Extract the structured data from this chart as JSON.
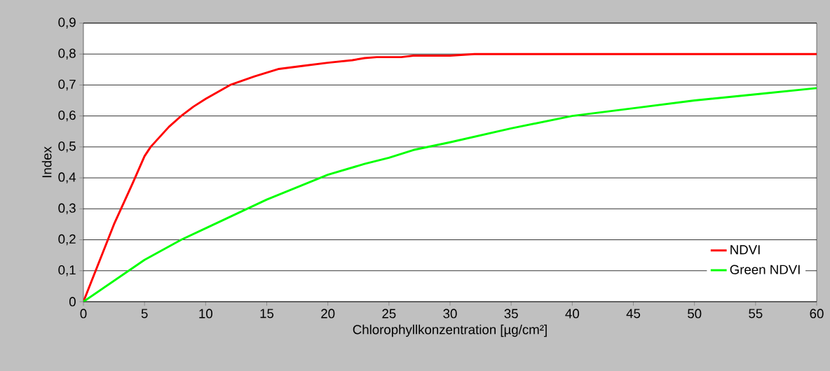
{
  "chart_data": {
    "type": "line",
    "xlabel": "Chlorophyllkonzentration [µg/cm²]",
    "ylabel": "Index",
    "xlim": [
      0,
      60
    ],
    "ylim": [
      0,
      0.9
    ],
    "xticks": [
      0,
      5,
      10,
      15,
      20,
      25,
      30,
      35,
      40,
      45,
      50,
      55,
      60
    ],
    "yticks": [
      {
        "value": 0,
        "label": "0"
      },
      {
        "value": 0.1,
        "label": "0,1"
      },
      {
        "value": 0.2,
        "label": "0,2"
      },
      {
        "value": 0.3,
        "label": "0,3"
      },
      {
        "value": 0.4,
        "label": "0,4"
      },
      {
        "value": 0.5,
        "label": "0,5"
      },
      {
        "value": 0.6,
        "label": "0,6"
      },
      {
        "value": 0.7,
        "label": "0,7"
      },
      {
        "value": 0.8,
        "label": "0,8"
      },
      {
        "value": 0.9,
        "label": "0,9"
      }
    ],
    "grid": "y",
    "legend": "bottom right",
    "marker": "none",
    "line_style": "solid",
    "series": [
      {
        "name": "NDVI",
        "color": "#ff0000",
        "x": [
          0,
          1,
          2.5,
          4,
          5,
          5.5,
          7,
          8,
          9,
          10,
          12,
          14,
          16,
          18,
          20,
          22,
          23,
          24,
          26,
          27,
          30,
          32,
          60
        ],
        "values": [
          0,
          0.1,
          0.25,
          0.38,
          0.47,
          0.5,
          0.565,
          0.6,
          0.63,
          0.655,
          0.7,
          0.728,
          0.752,
          0.762,
          0.772,
          0.78,
          0.787,
          0.79,
          0.79,
          0.795,
          0.795,
          0.8,
          0.8
        ]
      },
      {
        "name": "Green NDVI",
        "color": "#00ff00",
        "x": [
          0,
          5,
          8,
          10,
          15,
          20,
          23,
          25,
          27,
          30,
          35,
          40,
          45,
          50,
          55,
          60
        ],
        "values": [
          0,
          0.135,
          0.2,
          0.237,
          0.33,
          0.41,
          0.445,
          0.465,
          0.49,
          0.515,
          0.56,
          0.6,
          0.625,
          0.65,
          0.67,
          0.69
        ]
      }
    ]
  }
}
